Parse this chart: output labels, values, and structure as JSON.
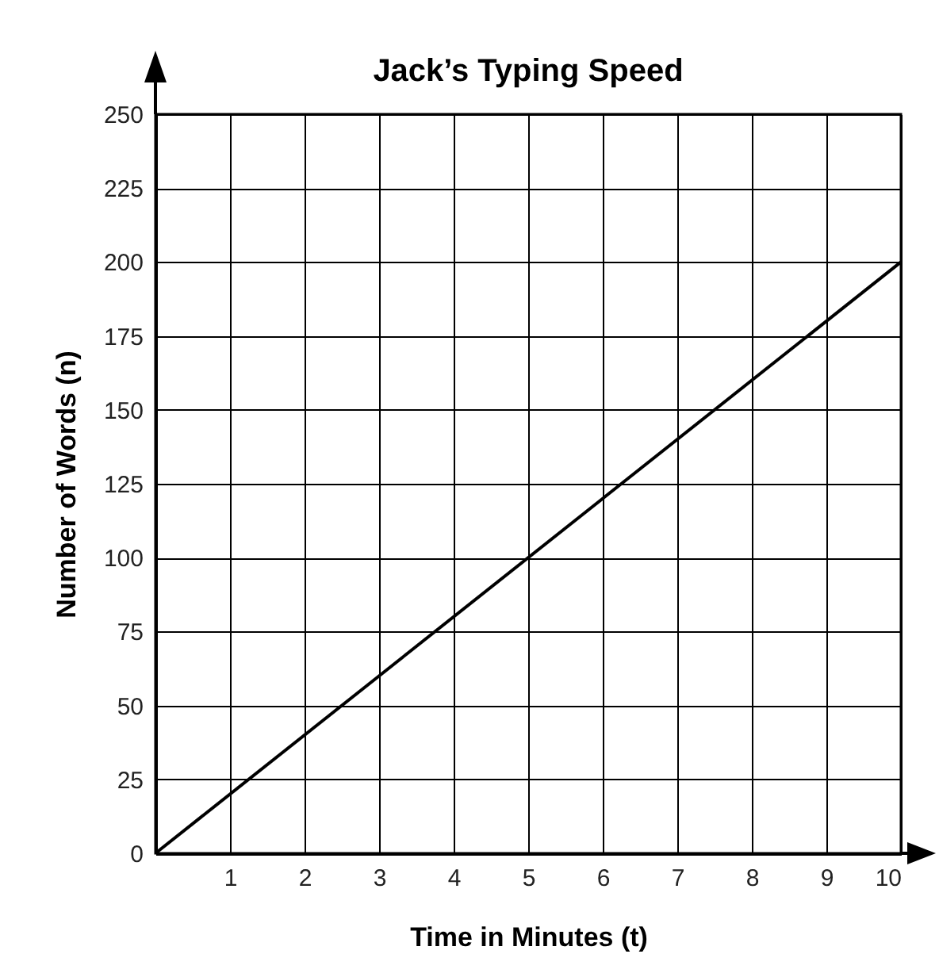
{
  "chart_data": {
    "type": "line",
    "title": "Jack’s Typing Speed",
    "xlabel": "Time in Minutes (t)",
    "ylabel": "Number of Words (n)",
    "x": [
      0,
      10
    ],
    "series": [
      {
        "color": "#000000",
        "values": [
          0,
          200
        ]
      }
    ],
    "xlim": [
      0,
      10
    ],
    "ylim": [
      0,
      250
    ],
    "xticks": [
      1,
      2,
      3,
      4,
      5,
      6,
      7,
      8,
      9,
      10
    ],
    "yticks": [
      0,
      25,
      50,
      75,
      100,
      125,
      150,
      175,
      200,
      225,
      250
    ],
    "grid": true,
    "marker": "none",
    "line_style": "solid",
    "legend": false
  }
}
